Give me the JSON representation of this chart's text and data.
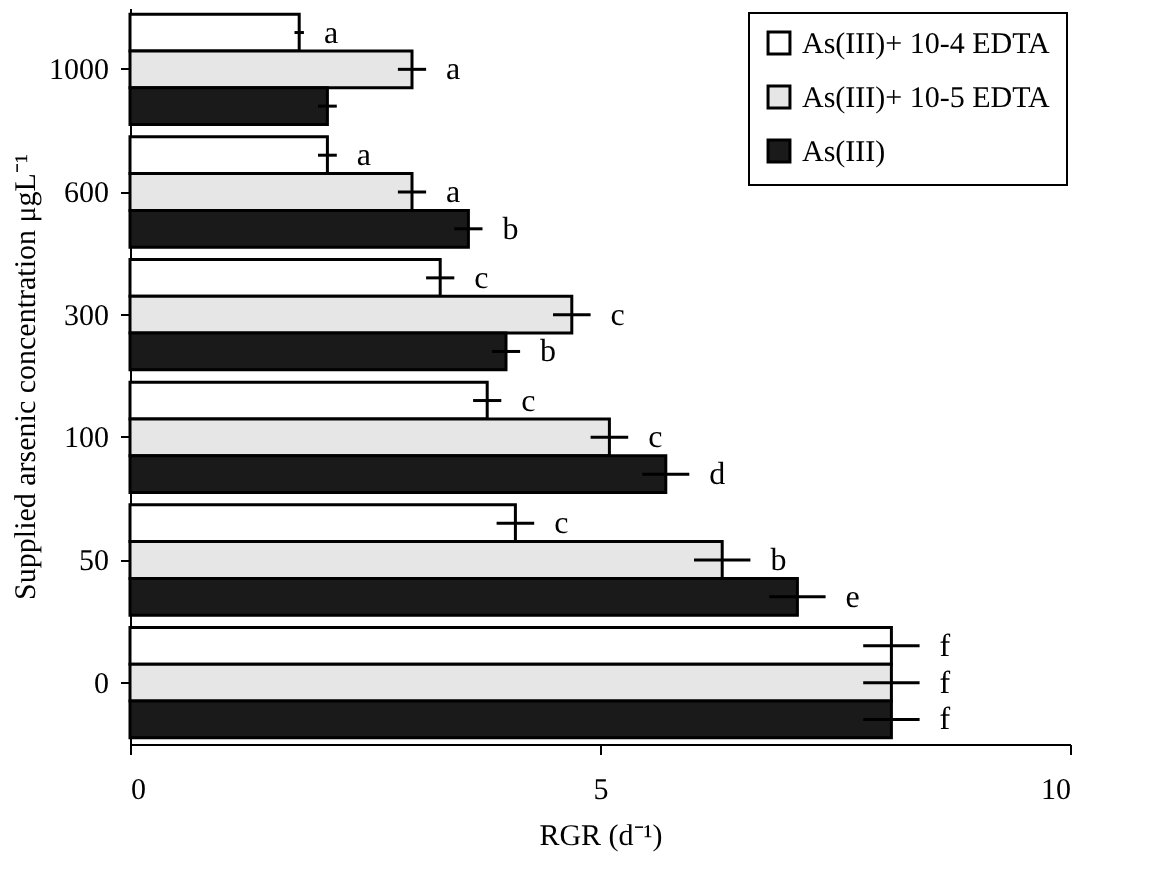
{
  "chart_data": {
    "type": "bar",
    "orientation": "horizontal",
    "xlabel": "RGR (d⁻¹)",
    "ylabel": "Supplied arsenic concentration μgL⁻¹",
    "categories": [
      "1000",
      "600",
      "300",
      "100",
      "50",
      "0"
    ],
    "series": [
      {
        "name": "As(III)+ 10-4 EDTA",
        "color": "#ffffff",
        "values": [
          1.8,
          2.1,
          3.3,
          3.8,
          4.1,
          8.1
        ],
        "errors": [
          0.05,
          0.1,
          0.15,
          0.15,
          0.2,
          0.3
        ],
        "value_labels": [
          "a",
          "a",
          "c",
          "c",
          "c",
          "f"
        ]
      },
      {
        "name": "As(III)+ 10-5 EDTA",
        "color": "#e6e6e6",
        "values": [
          3.0,
          3.0,
          4.7,
          5.1,
          6.3,
          8.1
        ],
        "errors": [
          0.15,
          0.15,
          0.2,
          0.2,
          0.3,
          0.3
        ],
        "value_labels": [
          "a",
          "a",
          "c",
          "c",
          "b",
          "f"
        ]
      },
      {
        "name": "As(III)",
        "color": "#1a1a1a",
        "values": [
          2.1,
          3.6,
          4.0,
          5.7,
          7.1,
          8.1
        ],
        "errors": [
          0.1,
          0.15,
          0.15,
          0.25,
          0.3,
          0.3
        ],
        "value_labels": [
          null,
          "b",
          "b",
          "d",
          "e",
          "f"
        ]
      }
    ],
    "xlim": [
      0,
      10
    ],
    "xticks": [
      0,
      5,
      10
    ],
    "grid": false,
    "legend": "top right"
  }
}
